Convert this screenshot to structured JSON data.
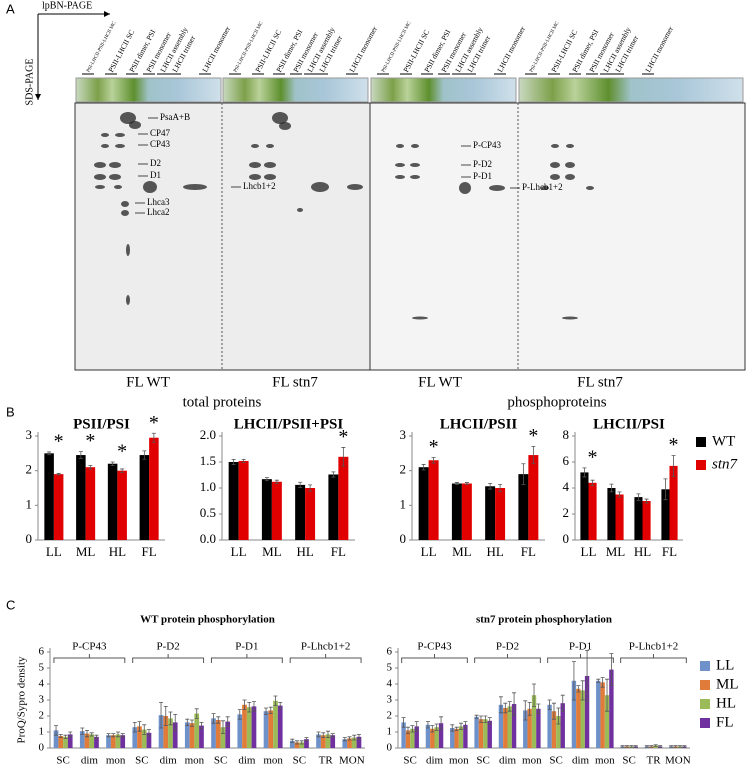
{
  "panel_a": {
    "label": "A",
    "x_axis_label": "lpBN-PAGE",
    "y_axis_label": "SDS-PAGE",
    "column_labels": [
      "PSI-LHCII-PSII-LHCII MC",
      "PSII-LHCII SC",
      "PSII dimer, PSI",
      "PSII monomer",
      "LHCII assembly",
      "LHCII trimer",
      "LHCII monomer"
    ],
    "total_protein_labels": [
      "PsaA+B",
      "CP47",
      "CP43",
      "D2",
      "D1",
      "Lhcb1+2",
      "Lhca3",
      "Lhca2"
    ],
    "phospho_labels": [
      "P-CP43",
      "P-D2",
      "P-D1",
      "P-Lhcb1+2"
    ],
    "lane_labels": [
      "FL WT",
      "FL stn7",
      "FL WT",
      "FL stn7"
    ],
    "section_labels": [
      "total proteins",
      "phosphoproteins"
    ]
  },
  "panel_labels": [
    "B",
    "C"
  ],
  "chart_data": [
    {
      "type": "bar",
      "title": "PSII/PSI",
      "categories": [
        "LL",
        "ML",
        "HL",
        "FL"
      ],
      "ylim": [
        0,
        3
      ],
      "yticks": [
        0,
        1,
        2,
        3
      ],
      "stars": [
        "*",
        "*",
        "*",
        "*"
      ],
      "series": [
        {
          "name": "WT",
          "color": "#000000",
          "values": [
            2.5,
            2.45,
            2.2,
            2.45
          ],
          "errors": [
            0.04,
            0.1,
            0.05,
            0.12
          ]
        },
        {
          "name": "stn7",
          "color": "#e00000",
          "values": [
            1.9,
            2.1,
            2.0,
            2.95
          ],
          "errors": [
            0.02,
            0.05,
            0.05,
            0.13
          ]
        }
      ],
      "legend": "right"
    },
    {
      "type": "bar",
      "title": "LHCII/PSII+PSI",
      "categories": [
        "LL",
        "ML",
        "HL",
        "FL"
      ],
      "ylim": [
        0,
        2
      ],
      "yticks": [
        {
          "value": 0,
          "label": "0.0"
        },
        0.5,
        {
          "value": 1,
          "label": "1.0"
        },
        1.5,
        {
          "value": 2,
          "label": "2.0"
        }
      ],
      "stars": [
        null,
        null,
        null,
        "*"
      ],
      "series": [
        {
          "name": "WT",
          "color": "#000000",
          "values": [
            1.5,
            1.17,
            1.06,
            1.26
          ],
          "errors": [
            0.05,
            0.03,
            0.05,
            0.05
          ]
        },
        {
          "name": "stn7",
          "color": "#e00000",
          "values": [
            1.52,
            1.12,
            1.0,
            1.6
          ],
          "errors": [
            0.03,
            0.03,
            0.06,
            0.18
          ]
        }
      ]
    },
    {
      "type": "bar",
      "title": "LHCII/PSII",
      "categories": [
        "LL",
        "ML",
        "HL",
        "FL"
      ],
      "ylim": [
        0,
        3
      ],
      "yticks": [
        0,
        1,
        2,
        3
      ],
      "stars": [
        "*",
        null,
        null,
        "*"
      ],
      "series": [
        {
          "name": "WT",
          "color": "#000000",
          "values": [
            2.1,
            1.63,
            1.55,
            1.9
          ],
          "errors": [
            0.08,
            0.03,
            0.08,
            0.3
          ]
        },
        {
          "name": "stn7",
          "color": "#e00000",
          "values": [
            2.3,
            1.63,
            1.5,
            2.45
          ],
          "errors": [
            0.08,
            0.03,
            0.1,
            0.25
          ]
        }
      ]
    },
    {
      "type": "bar",
      "title": "LHCII/PSI",
      "categories": [
        "LL",
        "ML",
        "HL",
        "FL"
      ],
      "ylim": [
        0,
        8
      ],
      "yticks": [
        0,
        2,
        4,
        6,
        8
      ],
      "stars": [
        "*",
        null,
        null,
        "*"
      ],
      "series": [
        {
          "name": "WT",
          "color": "#000000",
          "values": [
            5.2,
            4.0,
            3.3,
            3.9
          ],
          "errors": [
            0.35,
            0.3,
            0.25,
            0.8
          ]
        },
        {
          "name": "stn7",
          "color": "#e00000",
          "values": [
            4.4,
            3.5,
            3.0,
            5.7
          ],
          "errors": [
            0.2,
            0.2,
            0.15,
            0.8
          ]
        }
      ]
    },
    {
      "type": "bar",
      "title": "WT protein phosphorylation",
      "y_axis_label": "ProQ/Sypro density",
      "categories": [
        "SC",
        "dim",
        "mon",
        "SC",
        "dim",
        "mon",
        "SC",
        "dim",
        "mon",
        "SC",
        "TR",
        "MON"
      ],
      "groups": [
        "P-CP43",
        "P-D2",
        "P-D1",
        "P-Lhcb1+2"
      ],
      "ylim": [
        0,
        6
      ],
      "yticks": [
        0,
        1,
        2,
        3,
        4,
        5,
        6
      ],
      "series": [
        {
          "name": "LL",
          "color": "#6f91c9",
          "values": [
            1.1,
            1.05,
            0.8,
            1.3,
            2.05,
            1.6,
            1.85,
            2.1,
            2.3,
            0.45,
            0.85,
            0.55
          ],
          "errors": [
            0.3,
            0.2,
            0.1,
            0.3,
            0.8,
            0.2,
            0.3,
            0.3,
            0.2,
            0.1,
            0.15,
            0.1
          ]
        },
        {
          "name": "ML",
          "color": "#e07b39",
          "values": [
            0.75,
            0.9,
            0.8,
            1.35,
            2.0,
            1.55,
            1.75,
            2.7,
            2.35,
            0.35,
            0.8,
            0.6
          ],
          "errors": [
            0.1,
            0.2,
            0.1,
            0.3,
            0.6,
            0.2,
            0.2,
            0.3,
            0.2,
            0.1,
            0.15,
            0.1
          ]
        },
        {
          "name": "HL",
          "color": "#9bbb59",
          "values": [
            0.7,
            0.85,
            0.85,
            1.15,
            1.85,
            2.15,
            1.3,
            2.55,
            2.95,
            0.35,
            0.85,
            0.65
          ],
          "errors": [
            0.1,
            0.1,
            0.15,
            0.3,
            0.4,
            0.3,
            0.4,
            0.3,
            0.3,
            0.1,
            0.2,
            0.15
          ]
        },
        {
          "name": "FL",
          "color": "#7030a0",
          "values": [
            0.85,
            0.7,
            0.8,
            0.95,
            1.6,
            1.4,
            1.65,
            2.6,
            2.65,
            0.55,
            0.8,
            0.7
          ],
          "errors": [
            0.15,
            0.1,
            0.1,
            0.2,
            0.5,
            0.2,
            0.3,
            0.3,
            0.2,
            0.1,
            0.1,
            0.15
          ]
        }
      ]
    },
    {
      "type": "bar",
      "title": "stn7 protein phosphorylation",
      "categories": [
        "SC",
        "dim",
        "mon",
        "SC",
        "dim",
        "mon",
        "SC",
        "dim",
        "mon",
        "SC",
        "TR",
        "MON"
      ],
      "groups": [
        "P-CP43",
        "P-D2",
        "P-D1",
        "P-Lhcb1+2"
      ],
      "ylim": [
        0,
        6
      ],
      "yticks": [
        0,
        1,
        2,
        3,
        4,
        5,
        6
      ],
      "legend": "right",
      "series": [
        {
          "name": "LL",
          "color": "#6f91c9",
          "values": [
            1.6,
            1.45,
            1.25,
            1.95,
            2.7,
            2.35,
            2.7,
            4.2,
            4.2,
            0.1,
            0.1,
            0.1
          ],
          "errors": [
            0.3,
            0.2,
            0.2,
            0.1,
            0.5,
            0.6,
            0.3,
            1.2,
            0.1,
            0.05,
            0.05,
            0.05
          ]
        },
        {
          "name": "ML",
          "color": "#e07b39",
          "values": [
            1.1,
            1.2,
            1.2,
            1.8,
            2.5,
            2.45,
            2.3,
            3.7,
            4.1,
            0.1,
            0.1,
            0.1
          ],
          "errors": [
            0.2,
            0.2,
            0.1,
            0.2,
            0.3,
            0.4,
            0.5,
            0.2,
            0.3,
            0.05,
            0.05,
            0.05
          ]
        },
        {
          "name": "HL",
          "color": "#9bbb59",
          "values": [
            1.2,
            1.3,
            1.35,
            1.8,
            2.6,
            3.3,
            2.0,
            3.6,
            3.3,
            0.1,
            0.15,
            0.1
          ],
          "errors": [
            0.2,
            0.2,
            0.2,
            0.2,
            0.3,
            0.7,
            0.5,
            0.6,
            1.0,
            0.05,
            0.05,
            0.05
          ]
        },
        {
          "name": "FL",
          "color": "#7030a0",
          "values": [
            1.35,
            1.55,
            1.45,
            1.7,
            2.75,
            2.45,
            2.8,
            4.5,
            4.9,
            0.1,
            0.1,
            0.1
          ],
          "errors": [
            0.3,
            0.4,
            0.2,
            0.2,
            0.7,
            0.3,
            0.5,
            1.6,
            1.0,
            0.05,
            0.05,
            0.05
          ]
        }
      ]
    }
  ]
}
